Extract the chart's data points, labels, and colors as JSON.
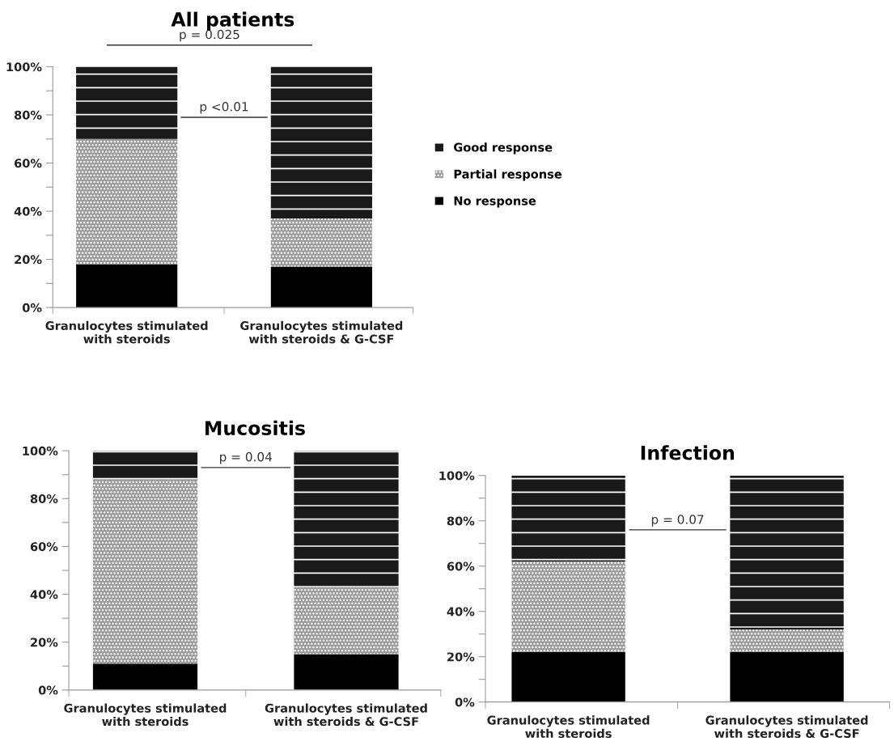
{
  "chart_data": [
    {
      "type": "bar",
      "title": "All patients",
      "stacked": true,
      "categories": [
        "Granulocytes stimulated\nwith steroids",
        "Granulocytes stimulated\nwith steroids & G-CSF"
      ],
      "series": [
        {
          "name": "No response",
          "color": "#000000",
          "values": [
            18,
            17
          ]
        },
        {
          "name": "Partial response",
          "color": "#9a9a9a",
          "values": [
            52,
            20
          ]
        },
        {
          "name": "Good response",
          "color": "#1a1a1a",
          "values": [
            30,
            63
          ]
        }
      ],
      "ylim": [
        0,
        100
      ],
      "yticks": [
        {
          "value": 0,
          "label": "0%"
        },
        {
          "value": 10,
          "label": null
        },
        {
          "value": 20,
          "label": "20%"
        },
        {
          "value": 30,
          "label": null
        },
        {
          "value": 40,
          "label": "40%"
        },
        {
          "value": 50,
          "label": null
        },
        {
          "value": 60,
          "label": "60%"
        },
        {
          "value": 70,
          "label": null
        },
        {
          "value": 80,
          "label": "80%"
        },
        {
          "value": 90,
          "label": null
        },
        {
          "value": 100,
          "label": "100%"
        }
      ],
      "annotations": [
        "p = 0.025",
        "p <0.01"
      ],
      "legend": "right",
      "grid": false
    },
    {
      "type": "bar",
      "title": "Mucositis",
      "stacked": true,
      "categories": [
        "Granulocytes stimulated\nwith steroids",
        "Granulocytes stimulated\nwith steroids & G-CSF"
      ],
      "series": [
        {
          "color": "#000000",
          "values": [
            11,
            15
          ]
        },
        {
          "color": "#9a9a9a",
          "values": [
            77,
            28
          ]
        },
        {
          "color": "#1a1a1a",
          "values": [
            12,
            57
          ]
        }
      ],
      "ylim": [
        0,
        100
      ],
      "yticks": [
        {
          "value": 0,
          "label": "0%"
        },
        {
          "value": 10,
          "label": null
        },
        {
          "value": 20,
          "label": "20%"
        },
        {
          "value": 30,
          "label": null
        },
        {
          "value": 40,
          "label": "40%"
        },
        {
          "value": 50,
          "label": null
        },
        {
          "value": 60,
          "label": "60%"
        },
        {
          "value": 70,
          "label": null
        },
        {
          "value": 80,
          "label": "80%"
        },
        {
          "value": 90,
          "label": null
        },
        {
          "value": 100,
          "label": "100%"
        }
      ],
      "annotations": [
        "p = 0.04"
      ],
      "legend": false,
      "grid": false
    },
    {
      "type": "bar",
      "title": "Infection",
      "stacked": true,
      "categories": [
        "Granulocytes stimulated\nwith steroids",
        "Granulocytes stimulated\nwith steroids & G-CSF"
      ],
      "series": [
        {
          "color": "#000000",
          "values": [
            22,
            22
          ]
        },
        {
          "color": "#9a9a9a",
          "values": [
            40,
            10
          ]
        },
        {
          "color": "#1a1a1a",
          "values": [
            38,
            68
          ]
        }
      ],
      "ylim": [
        0,
        100
      ],
      "yticks": [
        {
          "value": 0,
          "label": "0%"
        },
        {
          "value": 10,
          "label": null
        },
        {
          "value": 20,
          "label": "20%"
        },
        {
          "value": 30,
          "label": null
        },
        {
          "value": 40,
          "label": "40%"
        },
        {
          "value": 50,
          "label": null
        },
        {
          "value": 60,
          "label": "60%"
        },
        {
          "value": 70,
          "label": null
        },
        {
          "value": 80,
          "label": "80%"
        },
        {
          "value": 90,
          "label": null
        },
        {
          "value": 100,
          "label": "100%"
        }
      ],
      "annotations": [
        "p = 0.07"
      ],
      "legend": false,
      "grid": false
    }
  ]
}
